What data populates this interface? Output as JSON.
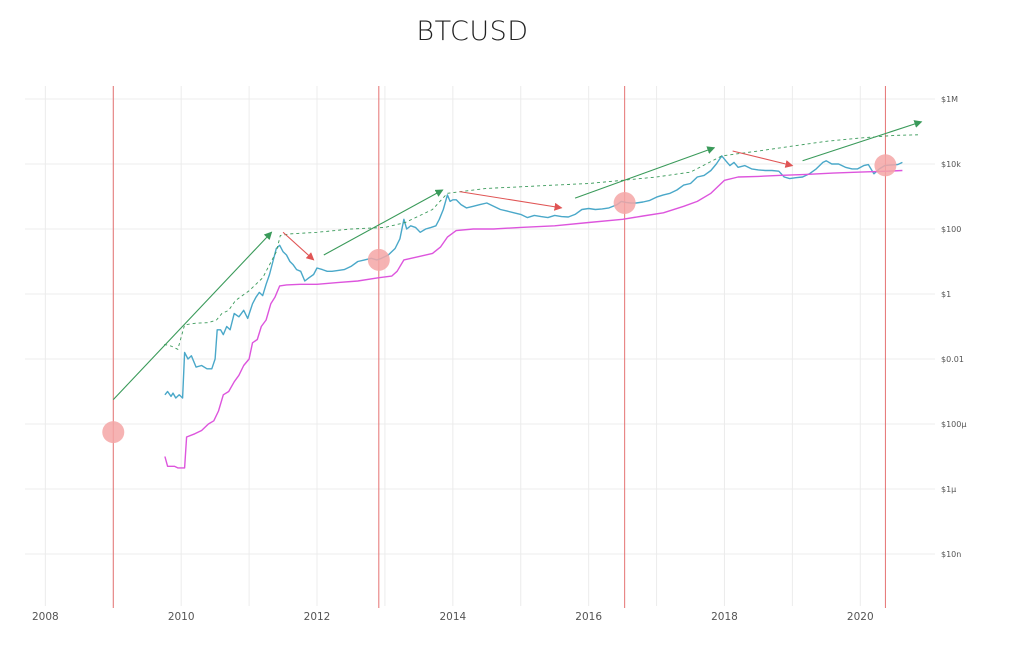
{
  "chart_data": {
    "type": "line",
    "title": "BTCUSD",
    "xlabel": "",
    "ylabel": "",
    "y_scale": "log",
    "xlim": [
      2007.7,
      2021.1
    ],
    "ylim_log10": [
      -9.6,
      6.4
    ],
    "x_ticks": [
      {
        "value": 2008,
        "label": "2008"
      },
      {
        "value": 2010,
        "label": "2010"
      },
      {
        "value": 2012,
        "label": "2012"
      },
      {
        "value": 2014,
        "label": "2014"
      },
      {
        "value": 2016,
        "label": "2016"
      },
      {
        "value": 2018,
        "label": "2018"
      },
      {
        "value": 2020,
        "label": "2020"
      }
    ],
    "y_ticks": [
      {
        "log10": 6,
        "label": "$1M"
      },
      {
        "log10": 4,
        "label": "$10k"
      },
      {
        "log10": 2,
        "label": "$100"
      },
      {
        "log10": 0,
        "label": "$1"
      },
      {
        "log10": -2,
        "label": "$0.01"
      },
      {
        "log10": -4,
        "label": "$100µ"
      },
      {
        "log10": -6,
        "label": "$1µ"
      },
      {
        "log10": -8,
        "label": "$10n"
      }
    ],
    "grid": true,
    "legend": "none",
    "colors": {
      "price": "#4aa8c9",
      "floor": "#dd55dd",
      "up": "#3a9a5a",
      "down": "#e05555",
      "halving": "#e57373",
      "marker": "#f4a6a6",
      "grid": "#ececec"
    },
    "series": [
      {
        "role": "price",
        "points": [
          [
            2009.76,
            -3.1
          ],
          [
            2009.8,
            -3.0
          ],
          [
            2009.85,
            -3.15
          ],
          [
            2009.88,
            -3.05
          ],
          [
            2009.92,
            -3.2
          ],
          [
            2009.97,
            -3.1
          ],
          [
            2010.02,
            -3.2
          ],
          [
            2010.05,
            -1.8
          ],
          [
            2010.1,
            -2.0
          ],
          [
            2010.15,
            -1.9
          ],
          [
            2010.22,
            -2.25
          ],
          [
            2010.3,
            -2.2
          ],
          [
            2010.38,
            -2.3
          ],
          [
            2010.45,
            -2.3
          ],
          [
            2010.5,
            -2.0
          ],
          [
            2010.53,
            -1.1
          ],
          [
            2010.58,
            -1.1
          ],
          [
            2010.62,
            -1.25
          ],
          [
            2010.67,
            -1.0
          ],
          [
            2010.72,
            -1.1
          ],
          [
            2010.78,
            -0.6
          ],
          [
            2010.85,
            -0.7
          ],
          [
            2010.92,
            -0.5
          ],
          [
            2010.98,
            -0.75
          ],
          [
            2011.05,
            -0.3
          ],
          [
            2011.1,
            -0.1
          ],
          [
            2011.15,
            0.05
          ],
          [
            2011.2,
            -0.05
          ],
          [
            2011.25,
            0.3
          ],
          [
            2011.3,
            0.6
          ],
          [
            2011.35,
            1.0
          ],
          [
            2011.4,
            1.4
          ],
          [
            2011.45,
            1.5
          ],
          [
            2011.5,
            1.3
          ],
          [
            2011.55,
            1.2
          ],
          [
            2011.6,
            1.0
          ],
          [
            2011.65,
            0.9
          ],
          [
            2011.7,
            0.75
          ],
          [
            2011.76,
            0.7
          ],
          [
            2011.82,
            0.4
          ],
          [
            2011.88,
            0.5
          ],
          [
            2011.95,
            0.6
          ],
          [
            2012.0,
            0.8
          ],
          [
            2012.08,
            0.75
          ],
          [
            2012.15,
            0.7
          ],
          [
            2012.22,
            0.7
          ],
          [
            2012.3,
            0.72
          ],
          [
            2012.4,
            0.75
          ],
          [
            2012.5,
            0.85
          ],
          [
            2012.6,
            1.0
          ],
          [
            2012.7,
            1.05
          ],
          [
            2012.8,
            1.1
          ],
          [
            2012.88,
            1.05
          ],
          [
            2012.95,
            1.1
          ],
          [
            2013.05,
            1.2
          ],
          [
            2013.15,
            1.4
          ],
          [
            2013.22,
            1.7
          ],
          [
            2013.28,
            2.3
          ],
          [
            2013.32,
            2.0
          ],
          [
            2013.38,
            2.1
          ],
          [
            2013.45,
            2.05
          ],
          [
            2013.52,
            1.9
          ],
          [
            2013.6,
            2.0
          ],
          [
            2013.68,
            2.05
          ],
          [
            2013.75,
            2.1
          ],
          [
            2013.8,
            2.3
          ],
          [
            2013.86,
            2.6
          ],
          [
            2013.92,
            3.05
          ],
          [
            2013.96,
            2.85
          ],
          [
            2014.0,
            2.9
          ],
          [
            2014.05,
            2.9
          ],
          [
            2014.12,
            2.75
          ],
          [
            2014.2,
            2.65
          ],
          [
            2014.3,
            2.7
          ],
          [
            2014.4,
            2.75
          ],
          [
            2014.5,
            2.8
          ],
          [
            2014.6,
            2.7
          ],
          [
            2014.7,
            2.6
          ],
          [
            2014.8,
            2.55
          ],
          [
            2014.9,
            2.5
          ],
          [
            2015.0,
            2.45
          ],
          [
            2015.1,
            2.35
          ],
          [
            2015.2,
            2.42
          ],
          [
            2015.3,
            2.38
          ],
          [
            2015.4,
            2.35
          ],
          [
            2015.5,
            2.42
          ],
          [
            2015.6,
            2.38
          ],
          [
            2015.7,
            2.37
          ],
          [
            2015.8,
            2.45
          ],
          [
            2015.9,
            2.6
          ],
          [
            2016.0,
            2.63
          ],
          [
            2016.1,
            2.6
          ],
          [
            2016.2,
            2.62
          ],
          [
            2016.3,
            2.65
          ],
          [
            2016.42,
            2.75
          ],
          [
            2016.48,
            2.85
          ],
          [
            2016.55,
            2.82
          ],
          [
            2016.62,
            2.8
          ],
          [
            2016.7,
            2.8
          ],
          [
            2016.8,
            2.83
          ],
          [
            2016.9,
            2.88
          ],
          [
            2017.0,
            2.98
          ],
          [
            2017.1,
            3.05
          ],
          [
            2017.2,
            3.1
          ],
          [
            2017.3,
            3.2
          ],
          [
            2017.4,
            3.35
          ],
          [
            2017.5,
            3.4
          ],
          [
            2017.6,
            3.6
          ],
          [
            2017.7,
            3.65
          ],
          [
            2017.8,
            3.8
          ],
          [
            2017.88,
            4.0
          ],
          [
            2017.96,
            4.25
          ],
          [
            2018.02,
            4.1
          ],
          [
            2018.08,
            3.95
          ],
          [
            2018.14,
            4.05
          ],
          [
            2018.2,
            3.9
          ],
          [
            2018.3,
            3.95
          ],
          [
            2018.4,
            3.85
          ],
          [
            2018.5,
            3.82
          ],
          [
            2018.6,
            3.8
          ],
          [
            2018.7,
            3.8
          ],
          [
            2018.8,
            3.78
          ],
          [
            2018.88,
            3.6
          ],
          [
            2018.96,
            3.55
          ],
          [
            2019.05,
            3.58
          ],
          [
            2019.15,
            3.6
          ],
          [
            2019.25,
            3.7
          ],
          [
            2019.35,
            3.85
          ],
          [
            2019.45,
            4.05
          ],
          [
            2019.5,
            4.1
          ],
          [
            2019.58,
            4.0
          ],
          [
            2019.68,
            4.0
          ],
          [
            2019.78,
            3.9
          ],
          [
            2019.88,
            3.85
          ],
          [
            2019.96,
            3.85
          ],
          [
            2020.05,
            3.95
          ],
          [
            2020.12,
            3.98
          ],
          [
            2020.2,
            3.7
          ],
          [
            2020.28,
            3.85
          ],
          [
            2020.36,
            3.95
          ],
          [
            2020.45,
            3.97
          ],
          [
            2020.55,
            3.98
          ],
          [
            2020.62,
            4.05
          ]
        ]
      },
      {
        "role": "floor",
        "points": [
          [
            2009.76,
            -5.0
          ],
          [
            2009.8,
            -5.3
          ],
          [
            2009.9,
            -5.3
          ],
          [
            2009.95,
            -5.35
          ],
          [
            2010.05,
            -5.35
          ],
          [
            2010.08,
            -4.4
          ],
          [
            2010.2,
            -4.3
          ],
          [
            2010.3,
            -4.2
          ],
          [
            2010.4,
            -4.0
          ],
          [
            2010.48,
            -3.9
          ],
          [
            2010.55,
            -3.6
          ],
          [
            2010.62,
            -3.1
          ],
          [
            2010.7,
            -3.0
          ],
          [
            2010.78,
            -2.7
          ],
          [
            2010.85,
            -2.5
          ],
          [
            2010.92,
            -2.2
          ],
          [
            2011.0,
            -2.0
          ],
          [
            2011.05,
            -1.5
          ],
          [
            2011.12,
            -1.4
          ],
          [
            2011.18,
            -1.0
          ],
          [
            2011.25,
            -0.8
          ],
          [
            2011.32,
            -0.3
          ],
          [
            2011.38,
            -0.1
          ],
          [
            2011.45,
            0.25
          ],
          [
            2011.55,
            0.28
          ],
          [
            2011.75,
            0.3
          ],
          [
            2012.0,
            0.3
          ],
          [
            2012.3,
            0.35
          ],
          [
            2012.6,
            0.4
          ],
          [
            2012.9,
            0.5
          ],
          [
            2013.1,
            0.55
          ],
          [
            2013.18,
            0.7
          ],
          [
            2013.28,
            1.05
          ],
          [
            2013.5,
            1.15
          ],
          [
            2013.7,
            1.25
          ],
          [
            2013.82,
            1.45
          ],
          [
            2013.92,
            1.75
          ],
          [
            2014.05,
            1.95
          ],
          [
            2014.3,
            2.0
          ],
          [
            2014.6,
            2.0
          ],
          [
            2015.0,
            2.05
          ],
          [
            2015.5,
            2.1
          ],
          [
            2016.0,
            2.2
          ],
          [
            2016.5,
            2.3
          ],
          [
            2016.8,
            2.4
          ],
          [
            2017.1,
            2.5
          ],
          [
            2017.4,
            2.7
          ],
          [
            2017.6,
            2.85
          ],
          [
            2017.8,
            3.1
          ],
          [
            2018.0,
            3.5
          ],
          [
            2018.2,
            3.6
          ],
          [
            2018.5,
            3.62
          ],
          [
            2018.8,
            3.65
          ],
          [
            2019.2,
            3.68
          ],
          [
            2019.6,
            3.72
          ],
          [
            2020.0,
            3.75
          ],
          [
            2020.4,
            3.78
          ],
          [
            2020.62,
            3.8
          ]
        ]
      },
      {
        "role": "ath",
        "points": [
          [
            2009.75,
            -1.55
          ],
          [
            2009.85,
            -1.6
          ],
          [
            2009.95,
            -1.7
          ],
          [
            2010.05,
            -0.95
          ],
          [
            2010.2,
            -0.9
          ],
          [
            2010.4,
            -0.88
          ],
          [
            2010.52,
            -0.8
          ],
          [
            2010.6,
            -0.6
          ],
          [
            2010.7,
            -0.5
          ],
          [
            2010.8,
            -0.2
          ],
          [
            2010.9,
            -0.05
          ],
          [
            2011.0,
            0.1
          ],
          [
            2011.1,
            0.3
          ],
          [
            2011.2,
            0.5
          ],
          [
            2011.3,
            0.9
          ],
          [
            2011.4,
            1.3
          ],
          [
            2011.46,
            1.8
          ],
          [
            2011.6,
            1.85
          ],
          [
            2012.0,
            1.9
          ],
          [
            2012.5,
            2.0
          ],
          [
            2013.0,
            2.05
          ],
          [
            2013.3,
            2.2
          ],
          [
            2013.7,
            2.6
          ],
          [
            2013.92,
            3.1
          ],
          [
            2014.5,
            3.25
          ],
          [
            2015.0,
            3.3
          ],
          [
            2015.5,
            3.35
          ],
          [
            2016.0,
            3.4
          ],
          [
            2016.5,
            3.5
          ],
          [
            2017.0,
            3.6
          ],
          [
            2017.5,
            3.75
          ],
          [
            2017.96,
            4.25
          ],
          [
            2018.5,
            4.4
          ],
          [
            2019.0,
            4.55
          ],
          [
            2019.5,
            4.7
          ],
          [
            2020.0,
            4.8
          ],
          [
            2020.5,
            4.88
          ],
          [
            2020.85,
            4.9
          ]
        ]
      }
    ],
    "trend_arrows": [
      {
        "dir": "up",
        "from": [
          2009.0,
          -3.25
        ],
        "to": [
          2011.33,
          1.9
        ]
      },
      {
        "dir": "down",
        "from": [
          2011.5,
          1.9
        ],
        "to": [
          2011.95,
          1.05
        ]
      },
      {
        "dir": "up",
        "from": [
          2012.1,
          1.2
        ],
        "to": [
          2013.85,
          3.2
        ]
      },
      {
        "dir": "down",
        "from": [
          2014.1,
          3.15
        ],
        "to": [
          2015.6,
          2.65
        ]
      },
      {
        "dir": "up",
        "from": [
          2015.8,
          2.95
        ],
        "to": [
          2017.85,
          4.5
        ]
      },
      {
        "dir": "down",
        "from": [
          2018.12,
          4.4
        ],
        "to": [
          2019.0,
          3.95
        ]
      },
      {
        "dir": "up",
        "from": [
          2019.15,
          4.1
        ],
        "to": [
          2020.9,
          5.3
        ]
      }
    ],
    "halvings": [
      {
        "x": 2009.0,
        "marker_log10": -4.25
      },
      {
        "x": 2012.91,
        "marker_log10": 1.05
      },
      {
        "x": 2016.53,
        "marker_log10": 2.8
      },
      {
        "x": 2020.37,
        "marker_log10": 3.96
      }
    ]
  }
}
